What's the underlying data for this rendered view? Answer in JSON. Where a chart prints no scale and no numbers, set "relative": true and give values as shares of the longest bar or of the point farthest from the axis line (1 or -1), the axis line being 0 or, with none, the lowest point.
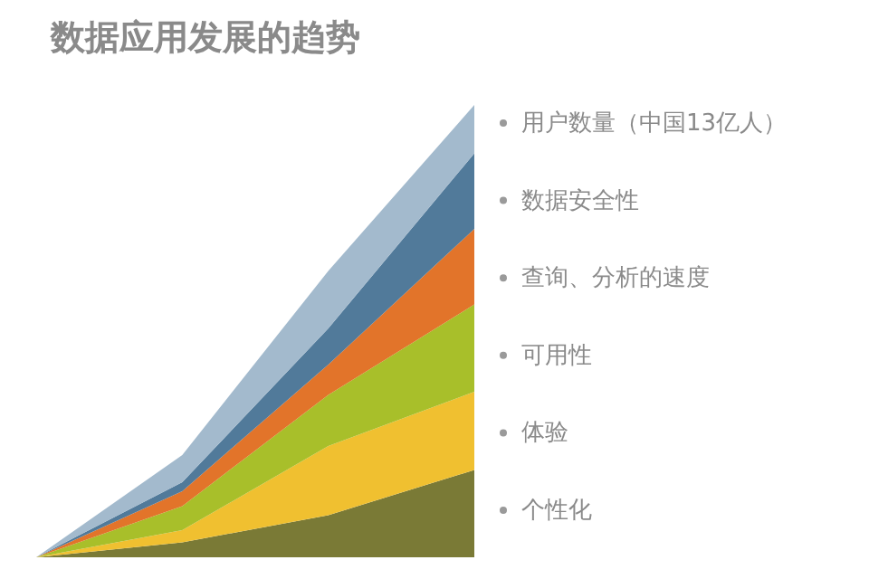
{
  "chart_data": {
    "type": "area",
    "title": "数据应用发展的趋势",
    "stacked": true,
    "relative": true,
    "legend": "right",
    "categories": [
      null,
      null,
      null,
      null
    ],
    "series": [
      {
        "name": "个性化",
        "color": "#7a7a36",
        "values": [
          0,
          0.033,
          0.093,
          0.193
        ]
      },
      {
        "name": "体验",
        "color": "#f0c030",
        "values": [
          0,
          0.027,
          0.153,
          0.173
        ]
      },
      {
        "name": "可用性",
        "color": "#a8bf2a",
        "values": [
          0,
          0.053,
          0.113,
          0.193
        ]
      },
      {
        "name": "查询、分析的速度",
        "color": "#e2742a",
        "values": [
          0,
          0.033,
          0.067,
          0.167
        ]
      },
      {
        "name": "数据安全性",
        "color": "#517a9a",
        "values": [
          0,
          0.02,
          0.08,
          0.167
        ]
      },
      {
        "name": "用户数量（中国13亿人）",
        "color": "#a3bacd",
        "values": [
          0,
          0.06,
          0.127,
          0.107
        ]
      }
    ]
  }
}
